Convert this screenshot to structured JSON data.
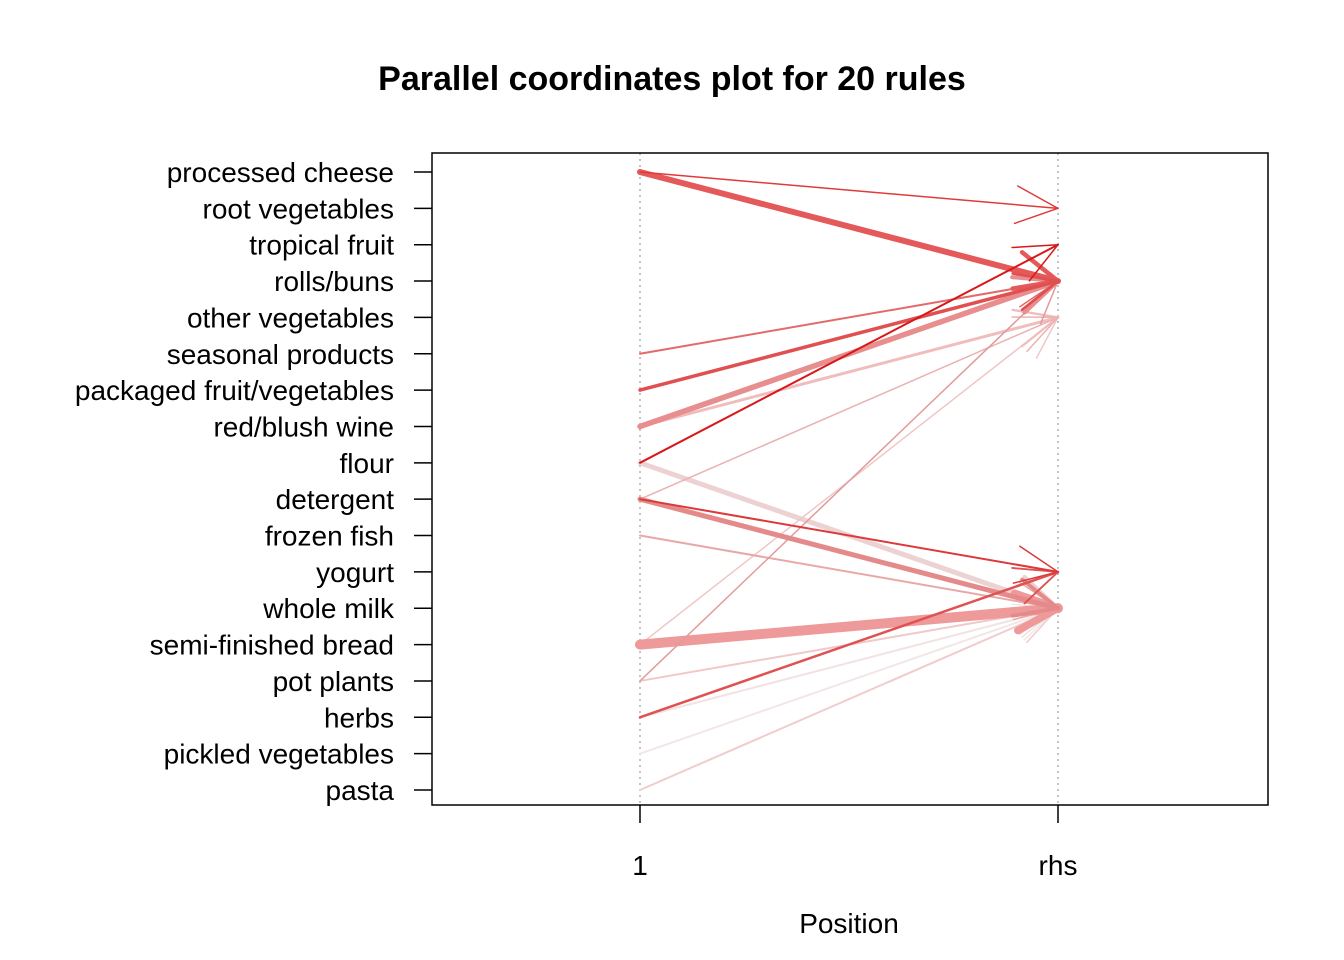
{
  "chart_data": {
    "type": "parallel-coordinates",
    "title": "Parallel coordinates plot for 20 rules",
    "xlabel": "Position",
    "x_ticks": [
      "1",
      "rhs"
    ],
    "items": [
      "processed cheese",
      "root vegetables",
      "tropical fruit",
      "rolls/buns",
      "other vegetables",
      "seasonal products",
      "packaged fruit/vegetables",
      "red/blush wine",
      "flour",
      "detergent",
      "frozen fish",
      "yogurt",
      "whole milk",
      "semi-finished bread",
      "pot plants",
      "herbs",
      "pickled vegetables",
      "pasta"
    ],
    "grid": "dotted vertical lines at positions",
    "rules": [
      {
        "lhs": "processed cheese",
        "rhs": "root vegetables",
        "weight": 1.5,
        "color": "#e03a3a"
      },
      {
        "lhs": "processed cheese",
        "rhs": "rolls/buns",
        "weight": 6,
        "color": "#e45a5a"
      },
      {
        "lhs": "seasonal products",
        "rhs": "rolls/buns",
        "weight": 2,
        "color": "#e46a6a"
      },
      {
        "lhs": "packaged fruit/vegetables",
        "rhs": "rolls/buns",
        "weight": 3.5,
        "color": "#e05050"
      },
      {
        "lhs": "red/blush wine",
        "rhs": "rolls/buns",
        "weight": 5.5,
        "color": "#e88e8e"
      },
      {
        "lhs": "red/blush wine",
        "rhs": "other vegetables",
        "weight": 3,
        "color": "#f0bcbc"
      },
      {
        "lhs": "flour",
        "rhs": "tropical fruit",
        "weight": 2,
        "color": "#d81818"
      },
      {
        "lhs": "flour",
        "rhs": "whole milk",
        "weight": 5,
        "color": "#ecd2d2"
      },
      {
        "lhs": "detergent",
        "rhs": "other vegetables",
        "weight": 1.5,
        "color": "#eab2b2"
      },
      {
        "lhs": "detergent",
        "rhs": "yogurt",
        "weight": 2,
        "color": "#dc3a3a"
      },
      {
        "lhs": "detergent",
        "rhs": "whole milk",
        "weight": 5,
        "color": "#e48a8a"
      },
      {
        "lhs": "frozen fish",
        "rhs": "whole milk",
        "weight": 2,
        "color": "#e8a8a8"
      },
      {
        "lhs": "semi-finished bread",
        "rhs": "whole milk",
        "weight": 10,
        "color": "#ee9a9a"
      },
      {
        "lhs": "semi-finished bread",
        "rhs": "other vegetables",
        "weight": 1.5,
        "color": "#f0c6c6"
      },
      {
        "lhs": "pot plants",
        "rhs": "rolls/buns",
        "weight": 1.5,
        "color": "#e29a9a"
      },
      {
        "lhs": "pot plants",
        "rhs": "whole milk",
        "weight": 2,
        "color": "#f0c8c8"
      },
      {
        "lhs": "herbs",
        "rhs": "yogurt",
        "weight": 2.5,
        "color": "#e05252"
      },
      {
        "lhs": "herbs",
        "rhs": "whole milk",
        "weight": 2,
        "color": "#f2e2e2"
      },
      {
        "lhs": "pickled vegetables",
        "rhs": "whole milk",
        "weight": 2,
        "color": "#f2e6e6"
      },
      {
        "lhs": "pasta",
        "rhs": "whole milk",
        "weight": 2,
        "color": "#f0cccc"
      }
    ]
  }
}
